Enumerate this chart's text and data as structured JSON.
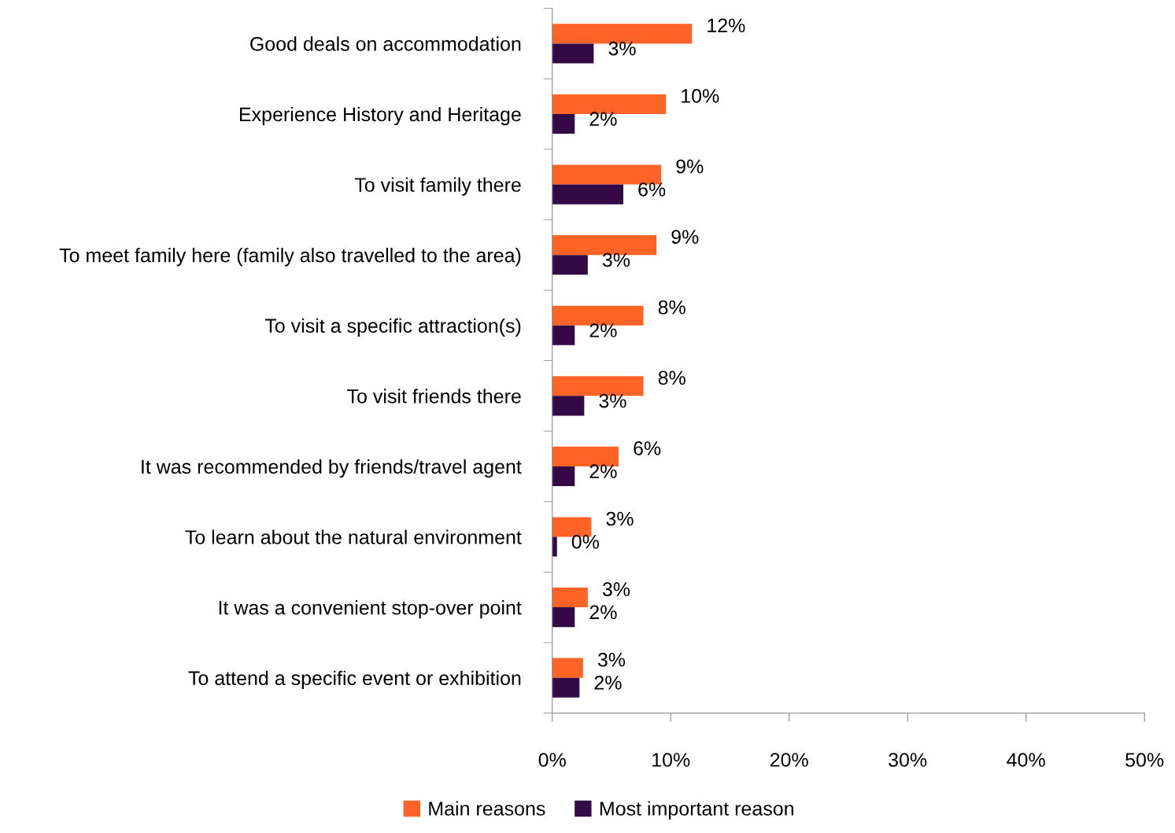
{
  "chart_data": {
    "type": "bar",
    "orientation": "horizontal",
    "categories": [
      "Good deals on accommodation",
      "Experience History and Heritage",
      "To visit family there",
      "To meet family here (family also travelled to the area)",
      "To visit a specific attraction(s)",
      "To visit friends there",
      "It was recommended by friends/travel agent",
      "To learn about the natural environment",
      "It was a convenient stop-over point",
      "To attend a specific event or exhibition"
    ],
    "series": [
      {
        "name": "Main reasons",
        "color": "#ff6326",
        "values": [
          11.8,
          9.6,
          9.2,
          8.8,
          7.7,
          7.7,
          5.6,
          3.3,
          3.0,
          2.6
        ],
        "value_labels": [
          "12%",
          "10%",
          "9%",
          "9%",
          "8%",
          "8%",
          "6%",
          "3%",
          "3%",
          "3%"
        ]
      },
      {
        "name": "Most important reason",
        "color": "#330a45",
        "values": [
          3.5,
          1.9,
          6.0,
          3.0,
          1.9,
          2.7,
          1.9,
          0.4,
          1.9,
          2.3
        ],
        "value_labels": [
          "3%",
          "2%",
          "6%",
          "3%",
          "2%",
          "3%",
          "2%",
          "0%",
          "2%",
          "2%"
        ]
      }
    ],
    "xlim": [
      0,
      50
    ],
    "xticks": [
      {
        "value": 0,
        "label": "0%"
      },
      {
        "value": 10,
        "label": "10%"
      },
      {
        "value": 20,
        "label": "20%"
      },
      {
        "value": 30,
        "label": "30%"
      },
      {
        "value": 40,
        "label": "40%"
      },
      {
        "value": 50,
        "label": "50%"
      }
    ],
    "grid": false,
    "legend": "bottom"
  }
}
